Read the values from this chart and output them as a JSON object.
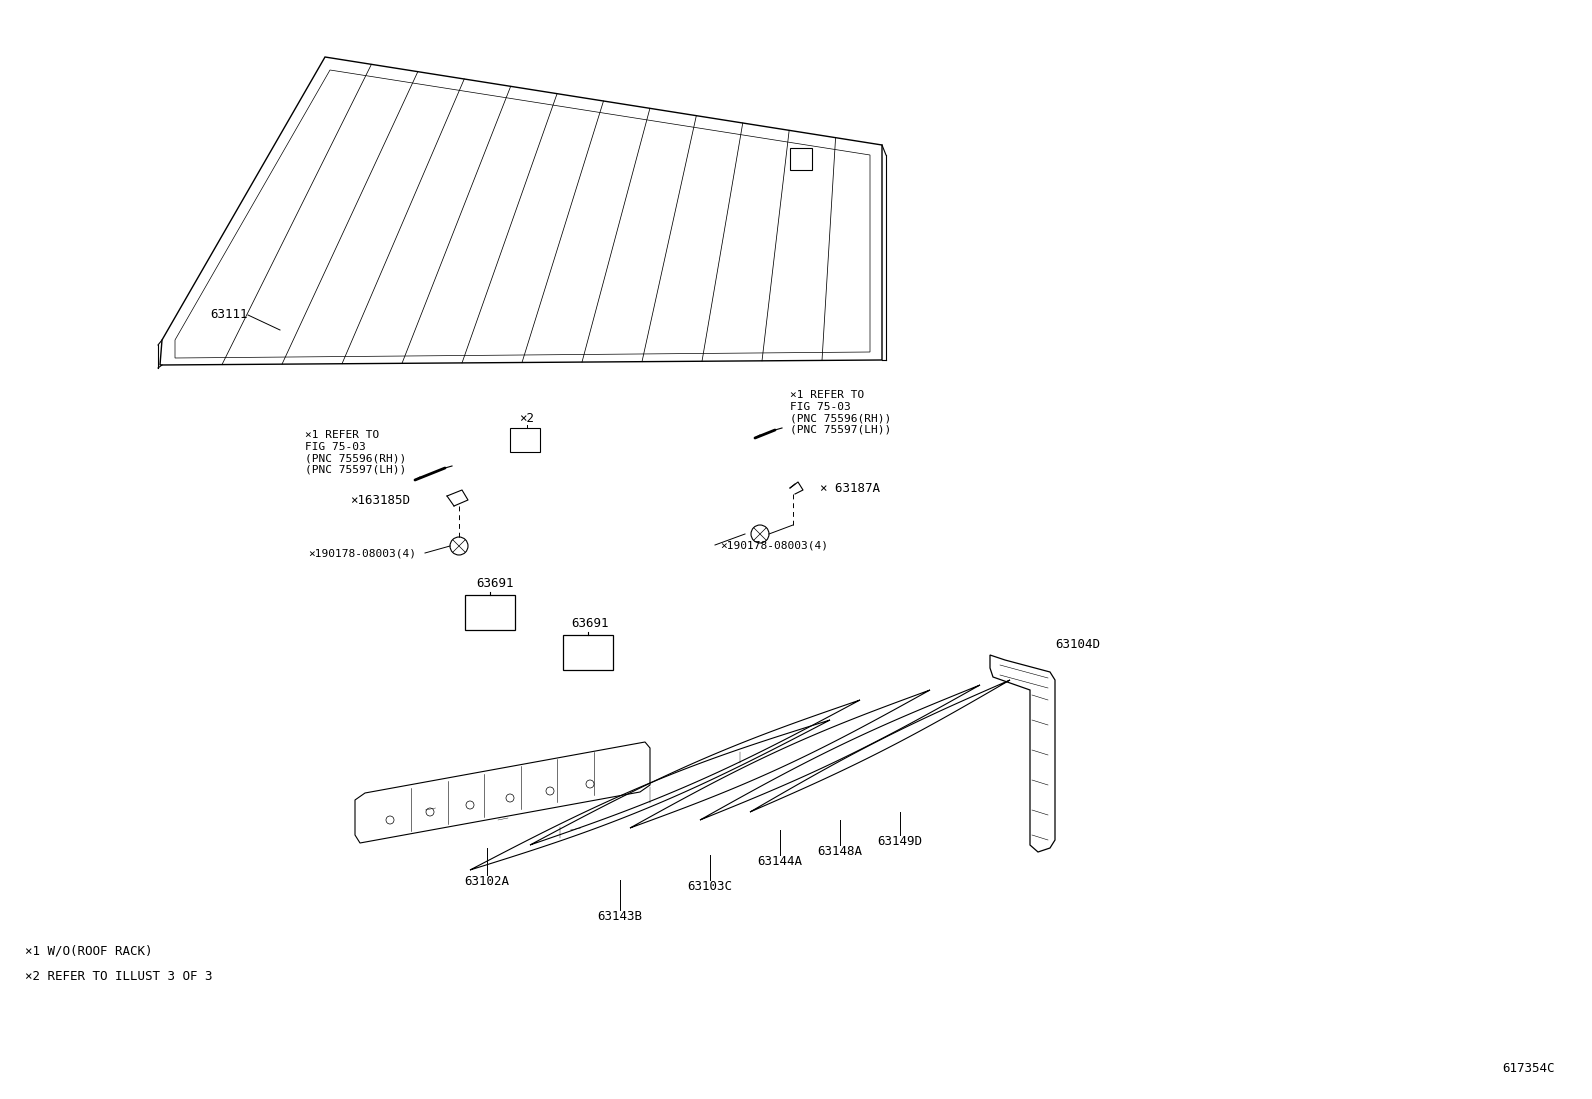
{
  "bg_color": "#ffffff",
  "fig_width": 15.92,
  "fig_height": 10.99,
  "diagram_code": "617354C",
  "footnotes": [
    "×1 W/O(ROOF RACK)",
    "×2 REFER TO ILLUST 3 OF 3"
  ]
}
